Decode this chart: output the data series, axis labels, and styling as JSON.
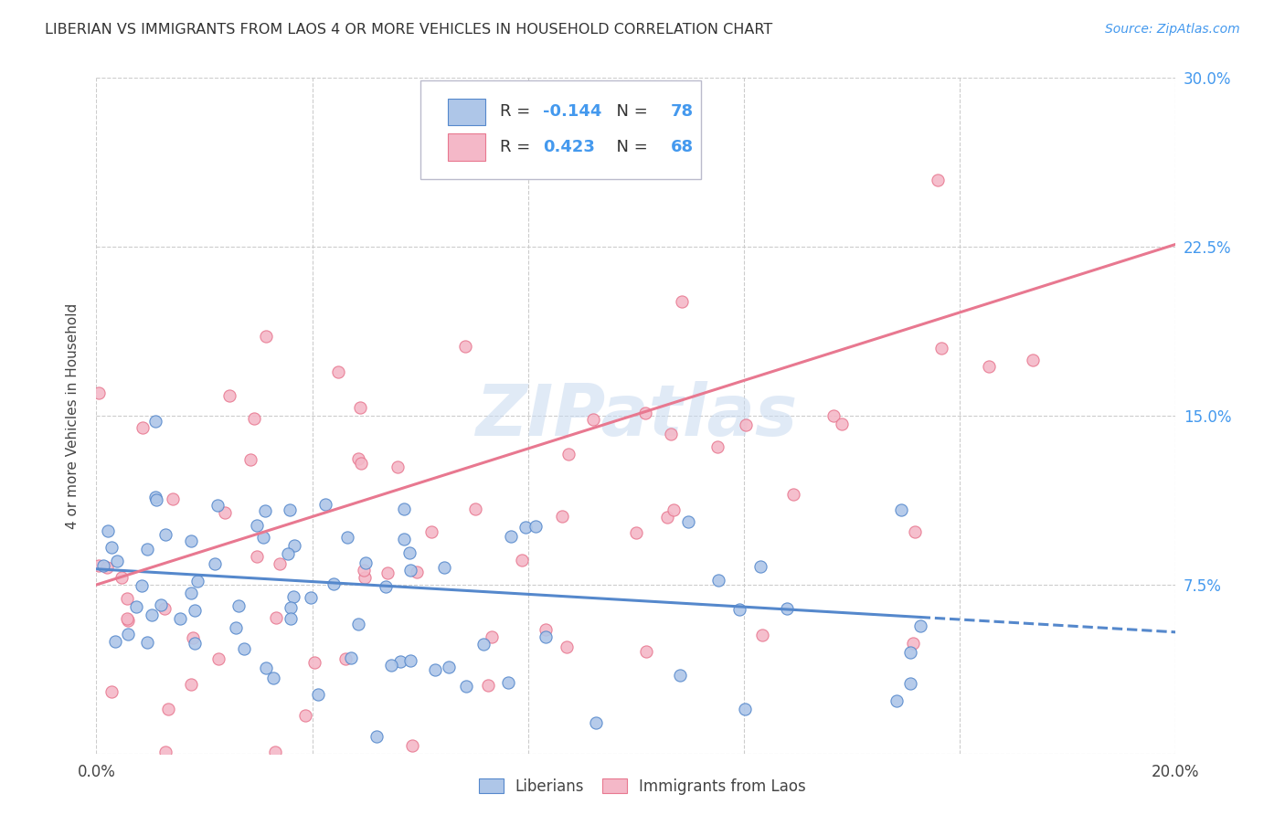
{
  "title": "LIBERIAN VS IMMIGRANTS FROM LAOS 4 OR MORE VEHICLES IN HOUSEHOLD CORRELATION CHART",
  "source": "Source: ZipAtlas.com",
  "ylabel": "4 or more Vehicles in Household",
  "xlim": [
    0.0,
    0.2
  ],
  "ylim": [
    0.0,
    0.3
  ],
  "xticks": [
    0.0,
    0.04,
    0.08,
    0.12,
    0.16,
    0.2
  ],
  "yticks": [
    0.0,
    0.075,
    0.15,
    0.225,
    0.3
  ],
  "ytick_labels_right": [
    "",
    "7.5%",
    "15.0%",
    "22.5%",
    "30.0%"
  ],
  "legend_labels": [
    "Liberians",
    "Immigrants from Laos"
  ],
  "liberian_color": "#aec6e8",
  "laos_color": "#f4b8c8",
  "liberian_line_color": "#5588cc",
  "laos_line_color": "#e87890",
  "R_liberian": -0.144,
  "N_liberian": 78,
  "R_laos": 0.423,
  "N_laos": 68,
  "watermark": "ZIPatlas",
  "background_color": "#ffffff",
  "grid_color": "#cccccc",
  "liberian_line_y0": 0.082,
  "liberian_line_y1": 0.054,
  "laos_line_y0": 0.075,
  "laos_line_y1": 0.226,
  "seed_liberian": 42,
  "seed_laos": 99
}
